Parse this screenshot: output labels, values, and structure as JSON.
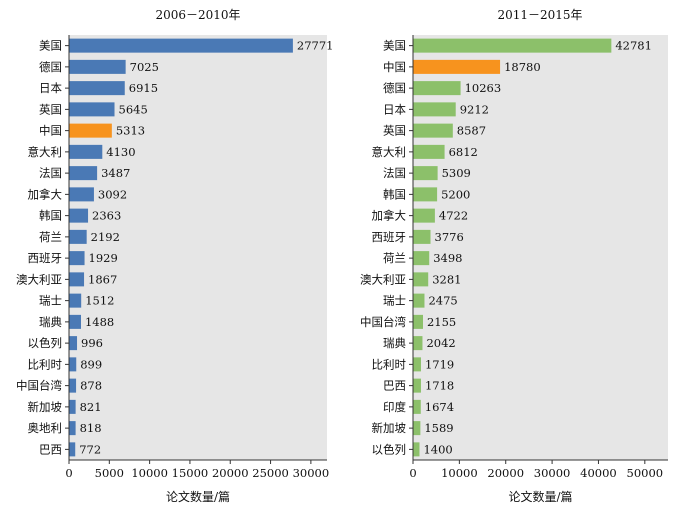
{
  "chart_data": [
    {
      "type": "bar",
      "orientation": "horizontal",
      "title": "2006－2010年",
      "xlabel": "论文数量/篇",
      "ylabel": "",
      "xlim": [
        0,
        32000
      ],
      "xticks": [
        0,
        5000,
        10000,
        15000,
        20000,
        25000,
        30000
      ],
      "xtick_labels": [
        "0",
        "5000",
        "10000",
        "15000",
        "20000",
        "25000",
        "30000"
      ],
      "categories": [
        "美国",
        "德国",
        "日本",
        "英国",
        "中国",
        "意大利",
        "法国",
        "加拿大",
        "韩国",
        "荷兰",
        "西班牙",
        "澳大利亚",
        "瑞士",
        "瑞典",
        "以色列",
        "比利时",
        "中国台湾",
        "新加坡",
        "奥地利",
        "巴西"
      ],
      "values": [
        27771,
        7025,
        6915,
        5645,
        5313,
        4130,
        3487,
        3092,
        2363,
        2192,
        1929,
        1867,
        1512,
        1488,
        996,
        899,
        878,
        821,
        818,
        772
      ],
      "value_labels": [
        "27771",
        "7025",
        "6915",
        "5645",
        "5313",
        "4130",
        "3487",
        "3092",
        "2363",
        "2192",
        "1929",
        "1867",
        "1512",
        "1488",
        "996",
        "899",
        "878",
        "821",
        "818",
        "772"
      ],
      "highlight": "中国",
      "bar_color": "#4a79b5",
      "highlight_color": "#f7931e"
    },
    {
      "type": "bar",
      "orientation": "horizontal",
      "title": "2011－2015年",
      "xlabel": "论文数量/篇",
      "ylabel": "",
      "xlim": [
        0,
        55000
      ],
      "xticks": [
        0,
        10000,
        20000,
        30000,
        40000,
        50000
      ],
      "xtick_labels": [
        "0",
        "10000",
        "20000",
        "30000",
        "40000",
        "50000"
      ],
      "categories": [
        "美国",
        "中国",
        "德国",
        "日本",
        "英国",
        "意大利",
        "法国",
        "韩国",
        "加拿大",
        "西班牙",
        "荷兰",
        "澳大利亚",
        "瑞士",
        "中国台湾",
        "瑞典",
        "比利时",
        "巴西",
        "印度",
        "新加坡",
        "以色列"
      ],
      "values": [
        42781,
        18780,
        10263,
        9212,
        8587,
        6812,
        5309,
        5200,
        4722,
        3776,
        3498,
        3281,
        2475,
        2155,
        2042,
        1719,
        1718,
        1674,
        1589,
        1400
      ],
      "value_labels": [
        "42781",
        "18780",
        "10263",
        "9212",
        "8587",
        "6812",
        "5309",
        "5200",
        "4722",
        "3776",
        "3498",
        "3281",
        "2475",
        "2155",
        "2042",
        "1719",
        "1718",
        "1674",
        "1589",
        "1400"
      ],
      "highlight": "中国",
      "bar_color": "#8cc06a",
      "highlight_color": "#f7931e"
    }
  ],
  "style": {
    "plot_background": "#e6e6e6",
    "axis_color": "#333333",
    "text_color": "#111111"
  }
}
